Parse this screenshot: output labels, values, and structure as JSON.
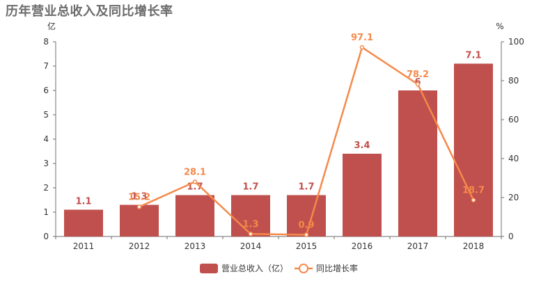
{
  "title": "历年营业总收入及同比增长率",
  "chart_data": {
    "type": "bar",
    "title": "历年营业总收入及同比增长率",
    "categories": [
      "2011",
      "2012",
      "2013",
      "2014",
      "2015",
      "2016",
      "2017",
      "2018"
    ],
    "y_left": {
      "unit": "亿",
      "ylim": [
        0,
        8
      ],
      "ticks": [
        0,
        1,
        2,
        3,
        4,
        5,
        6,
        7,
        8
      ]
    },
    "y_right": {
      "unit": "%",
      "ylim": [
        0,
        100
      ],
      "ticks": [
        0,
        20,
        40,
        60,
        80,
        100
      ]
    },
    "series": [
      {
        "name": "营业总收入（亿）",
        "kind": "bar",
        "axis": "left",
        "color": "#c0504d",
        "values": [
          1.1,
          1.3,
          1.7,
          1.7,
          1.7,
          3.4,
          6.0,
          7.1
        ],
        "labels": [
          "1.1",
          "1.3",
          "1.7",
          "1.7",
          "1.7",
          "3.4",
          "6",
          "7.1"
        ]
      },
      {
        "name": "同比增长率",
        "kind": "line",
        "axis": "right",
        "color": "#f5894a",
        "values": [
          null,
          15.2,
          28.1,
          1.3,
          0.9,
          97.1,
          78.2,
          18.7
        ],
        "labels": [
          "",
          "15.2",
          "28.1",
          "1.3",
          "0.9",
          "97.1",
          "78.2",
          "18.7"
        ]
      }
    ],
    "legend": {
      "placement": "bottom-center"
    },
    "grid": false
  }
}
